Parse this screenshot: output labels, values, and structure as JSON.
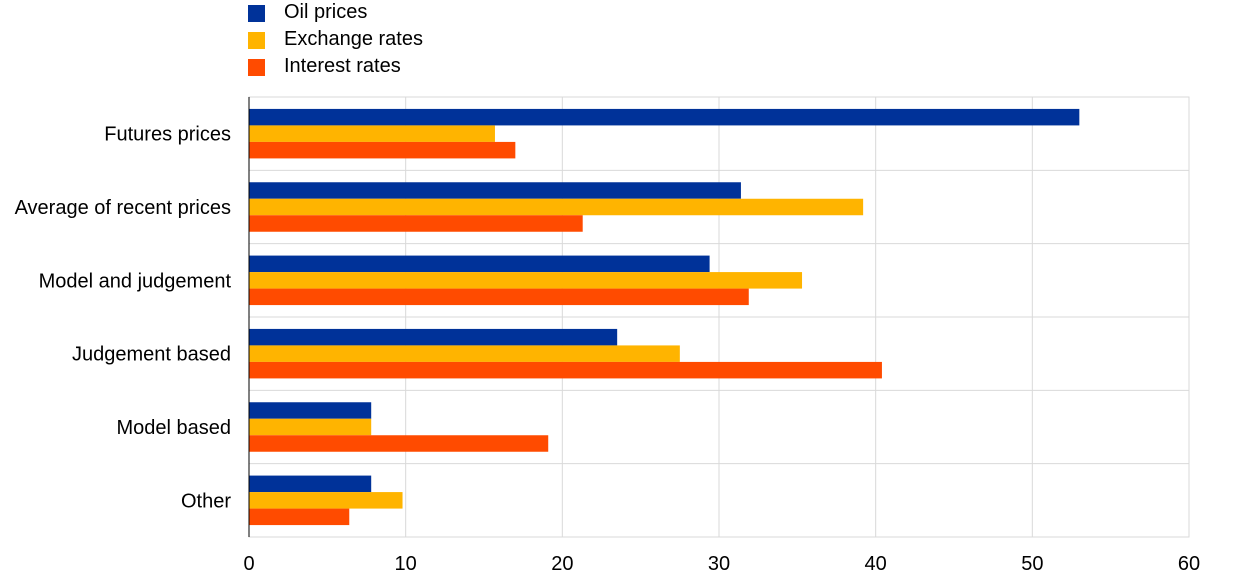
{
  "chart_data": {
    "type": "bar",
    "orientation": "horizontal",
    "categories": [
      "Futures prices",
      "Average of recent prices",
      "Model and judgement",
      "Judgement based",
      "Model based",
      "Other"
    ],
    "series": [
      {
        "name": "Oil prices",
        "color": "#003299",
        "values": [
          53,
          31.4,
          29.4,
          23.5,
          7.8,
          7.8
        ]
      },
      {
        "name": "Exchange rates",
        "color": "#FFB400",
        "values": [
          15.7,
          39.2,
          35.3,
          27.5,
          7.8,
          9.8
        ]
      },
      {
        "name": "Interest rates",
        "color": "#FF4B00",
        "values": [
          17.0,
          21.3,
          31.9,
          40.4,
          19.1,
          6.4
        ]
      }
    ],
    "xlim": [
      0,
      60
    ],
    "xticks": [
      "0",
      "10",
      "20",
      "30",
      "40",
      "50",
      "60"
    ],
    "grid": true,
    "legend_position": "top-left"
  }
}
